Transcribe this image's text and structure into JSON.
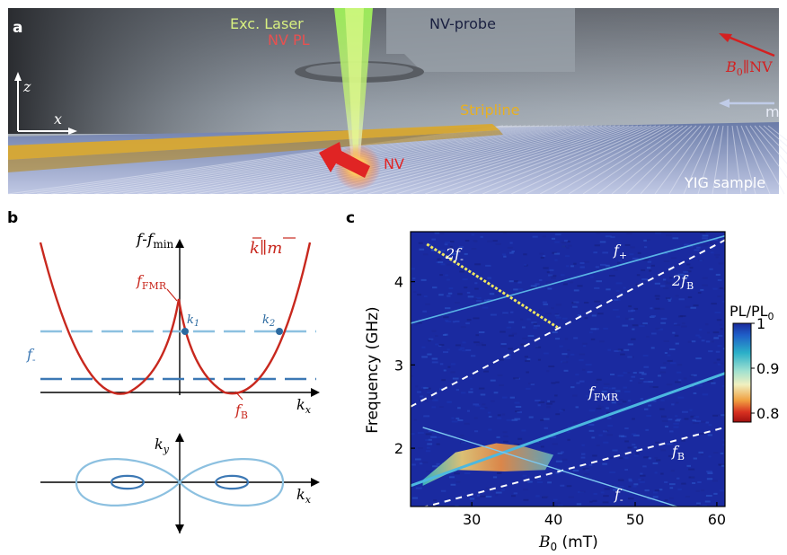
{
  "figure": {
    "panel_a": {
      "letter": "a",
      "labels": {
        "laser": "Exc. Laser",
        "nv_pl": "NV PL",
        "nv_probe": "NV-probe",
        "b0": "B",
        "b0_sub": "0",
        "b0_rest": "∥NV",
        "stripline": "Stripline",
        "m": "m",
        "nv": "NV",
        "yig": "YIG sample",
        "axis_z": "z",
        "axis_x": "x"
      },
      "colors": {
        "laser": "#b8e06a",
        "pl": "#e04040",
        "stripline": "#e8b020",
        "arrow_red": "#d82020",
        "m_arrow": "#b8c8e8"
      }
    },
    "panel_b": {
      "letter": "b",
      "labels": {
        "yaxis_f": "f",
        "yaxis_dash": "-",
        "yaxis_fmin": "f",
        "yaxis_min_sub": "min",
        "km_k": "k",
        "km_par": "∥",
        "km_m": "m",
        "ffmr": "f",
        "ffmr_sub": "FMR",
        "k1": "k",
        "k1_sub": "1",
        "k2": "k",
        "k2_sub": "2",
        "fminus": "f",
        "fminus_sub": "-",
        "fb": "f",
        "fb_sub": "B",
        "kx": "k",
        "kx_sub": "x",
        "ky": "k",
        "ky_sub": "y",
        "kx2": "k",
        "kx2_sub": "x"
      },
      "colors": {
        "dispersion": "#c8281e",
        "line_light": "#8cc0e0",
        "line_dark": "#3c78b4",
        "dot": "#2c6aa0"
      }
    },
    "panel_c": {
      "letter": "c",
      "xlabel": "B",
      "xlabel_sub": "0",
      "xlabel_unit": " (mT)",
      "ylabel": "Frequency (GHz)",
      "colorbar_label": "PL/PL",
      "colorbar_sub": "0",
      "colorbar_ticks": [
        "1",
        "0.9",
        "0.8"
      ],
      "curve_labels": {
        "two_fminus": "2f",
        "two_fminus_sub": "-",
        "fplus": "f",
        "fplus_sub": "+",
        "two_fb": "2f",
        "two_fb_sub": "B",
        "ffmr": "f",
        "ffmr_sub": "FMR",
        "fb": "f",
        "fb_sub": "B",
        "fminus": "f",
        "fminus_sub": "-"
      }
    }
  },
  "chart_data": {
    "type": "heatmap",
    "title": "",
    "xlabel": "B0 (mT)",
    "ylabel": "Frequency (GHz)",
    "xlim": [
      22.5,
      61
    ],
    "ylim": [
      1.3,
      4.6
    ],
    "xticks": [
      30,
      40,
      50,
      60
    ],
    "yticks": [
      2,
      3,
      4
    ],
    "colorbar": {
      "label": "PL/PL0",
      "range": [
        0.78,
        1.0
      ],
      "ticks": [
        1,
        0.9,
        0.8
      ]
    },
    "series": [
      {
        "name": "f+",
        "x": [
          22.5,
          61
        ],
        "y": [
          3.5,
          4.55
        ]
      },
      {
        "name": "2f-",
        "x": [
          24.5,
          40.5
        ],
        "y": [
          4.45,
          3.45
        ]
      },
      {
        "name": "2fB",
        "x": [
          22.5,
          61
        ],
        "y": [
          2.5,
          4.5
        ]
      },
      {
        "name": "fFMR",
        "x": [
          22.5,
          61
        ],
        "y": [
          1.55,
          2.9
        ]
      },
      {
        "name": "fB",
        "x": [
          22.5,
          61
        ],
        "y": [
          1.25,
          2.25
        ]
      },
      {
        "name": "f-",
        "x": [
          24,
          60
        ],
        "y": [
          2.25,
          1.15
        ]
      }
    ]
  }
}
